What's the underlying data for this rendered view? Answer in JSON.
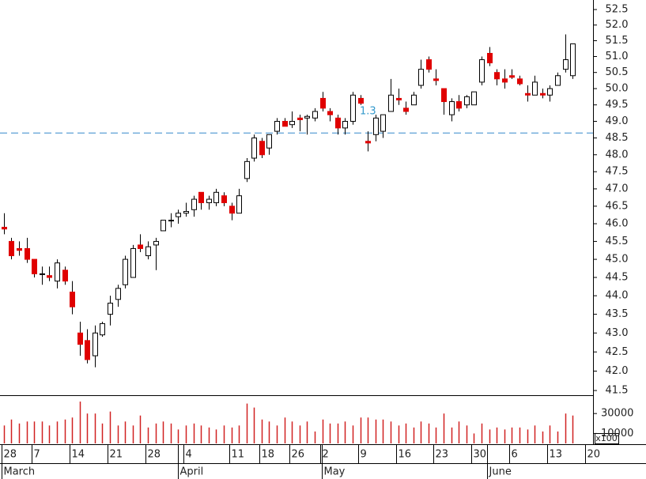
{
  "chart_data": {
    "type": "candlestick",
    "log_y": true,
    "up_color": "#ffffff",
    "down_color": "#e00000",
    "wick_color": "#000000",
    "volume_color": "#d02020",
    "annotation": "1.3",
    "annotation_color": "#3399cc",
    "hline": {
      "value": 48.65,
      "color": "#3388cc"
    },
    "open": [
      45.9,
      45.5,
      45.3,
      45.3,
      45.0,
      44.6,
      44.55,
      44.4,
      44.7,
      44.1,
      43.0,
      42.8,
      42.4,
      42.95,
      43.5,
      43.9,
      44.3,
      44.5,
      45.4,
      45.1,
      45.4,
      45.8,
      46.1,
      46.2,
      46.3,
      46.4,
      46.9,
      46.6,
      46.6,
      46.8,
      46.5,
      46.3,
      47.3,
      47.9,
      48.4,
      48.2,
      48.7,
      49.0,
      48.9,
      49.1,
      49.1,
      49.1,
      49.7,
      49.3,
      49.1,
      48.8,
      49.0,
      49.7,
      48.4,
      48.6,
      48.7,
      49.3,
      49.7,
      49.4,
      49.5,
      50.1,
      50.9,
      50.3,
      50.0,
      49.2,
      49.6,
      49.5,
      49.5,
      50.2,
      51.1,
      50.5,
      50.3,
      50.4,
      50.3,
      49.85,
      49.8,
      49.85,
      49.8,
      50.1,
      50.6,
      50.4
    ],
    "high": [
      46.3,
      45.6,
      45.5,
      45.6,
      45.0,
      44.8,
      44.8,
      45.0,
      44.8,
      44.4,
      43.3,
      43.1,
      43.2,
      43.3,
      44.0,
      44.3,
      45.1,
      45.4,
      45.7,
      45.5,
      45.6,
      46.1,
      46.3,
      46.4,
      46.6,
      46.8,
      46.9,
      46.8,
      47.0,
      46.9,
      46.6,
      47.0,
      47.9,
      48.6,
      48.5,
      48.6,
      49.1,
      49.1,
      49.3,
      49.2,
      49.2,
      49.4,
      49.9,
      49.4,
      49.2,
      49.1,
      49.9,
      49.8,
      48.7,
      49.2,
      49.2,
      50.3,
      50.0,
      49.6,
      49.9,
      50.9,
      51.0,
      50.6,
      50.0,
      49.7,
      49.8,
      49.8,
      49.9,
      51.0,
      51.3,
      50.6,
      50.6,
      50.6,
      50.4,
      50.1,
      50.4,
      50.0,
      50.1,
      50.5,
      51.7,
      51.4
    ],
    "low": [
      45.7,
      45.0,
      45.1,
      44.9,
      44.5,
      44.3,
      44.4,
      44.2,
      44.3,
      43.5,
      42.4,
      42.2,
      42.1,
      42.9,
      43.2,
      43.7,
      44.2,
      44.5,
      45.2,
      45.0,
      44.7,
      45.8,
      45.9,
      46.0,
      46.2,
      46.2,
      46.4,
      46.4,
      46.5,
      46.5,
      46.1,
      46.3,
      47.2,
      47.8,
      47.9,
      48.0,
      48.6,
      48.9,
      48.8,
      48.7,
      48.6,
      49.0,
      49.3,
      49.0,
      48.6,
      48.6,
      48.9,
      49.5,
      48.1,
      48.4,
      48.5,
      49.3,
      49.5,
      49.2,
      49.5,
      50.0,
      50.5,
      50.1,
      49.2,
      49.0,
      49.3,
      49.4,
      49.5,
      50.1,
      50.7,
      50.1,
      50.0,
      50.3,
      50.1,
      49.6,
      49.8,
      49.7,
      49.6,
      50.1,
      50.5,
      50.3
    ],
    "close": [
      45.85,
      45.1,
      45.25,
      45.0,
      44.6,
      44.6,
      44.5,
      44.9,
      44.4,
      43.7,
      42.7,
      42.3,
      43.0,
      43.25,
      43.8,
      44.2,
      45.0,
      45.3,
      45.3,
      45.35,
      45.5,
      46.1,
      46.1,
      46.3,
      46.35,
      46.7,
      46.6,
      46.7,
      46.9,
      46.6,
      46.3,
      46.8,
      47.8,
      48.5,
      48.0,
      48.6,
      49.0,
      48.85,
      49.0,
      49.05,
      49.15,
      49.3,
      49.4,
      49.2,
      48.8,
      49.0,
      49.8,
      49.55,
      48.35,
      49.1,
      49.2,
      49.8,
      49.65,
      49.3,
      49.8,
      50.6,
      50.6,
      50.25,
      49.6,
      49.6,
      49.4,
      49.75,
      49.9,
      50.9,
      50.8,
      50.3,
      50.2,
      50.35,
      50.15,
      49.8,
      50.2,
      49.8,
      50.0,
      50.4,
      50.9,
      51.4
    ],
    "volume": [
      18000,
      24000,
      20000,
      22000,
      22000,
      22000,
      18000,
      22000,
      24000,
      26000,
      42000,
      30000,
      30000,
      20000,
      32000,
      18000,
      22000,
      18000,
      28000,
      16000,
      20000,
      22000,
      20000,
      14000,
      18000,
      20000,
      18000,
      16000,
      14000,
      18000,
      16000,
      18000,
      40000,
      36000,
      24000,
      22000,
      18000,
      26000,
      22000,
      18000,
      22000,
      12000,
      24000,
      20000,
      20000,
      22000,
      18000,
      26000,
      26000,
      24000,
      24000,
      22000,
      18000,
      20000,
      16000,
      22000,
      20000,
      16000,
      30000,
      16000,
      22000,
      18000,
      10000,
      20000,
      14000,
      16000,
      14000,
      16000,
      16000,
      14000,
      18000,
      12000,
      18000,
      12000,
      30000,
      28000
    ],
    "ylim": [
      41.38,
      52.81
    ],
    "yticks": [
      {
        "value": 52.5,
        "label": "52.5"
      },
      {
        "value": 52,
        "label": "52.0"
      },
      51.5,
      {
        "value": 51,
        "label": "51.0"
      },
      50.5,
      {
        "value": 50,
        "label": "50.0"
      },
      49.5,
      {
        "value": 49,
        "label": "49.0"
      },
      48.5,
      {
        "value": 48,
        "label": "48.0"
      },
      47.5,
      {
        "value": 47,
        "label": "47.0"
      },
      46.5,
      {
        "value": 46,
        "label": "46.0"
      },
      45.5,
      {
        "value": 45,
        "label": "45.0"
      },
      44.5,
      {
        "value": 44,
        "label": "44.0"
      },
      43.5,
      {
        "value": 43,
        "label": "43.0"
      },
      42.5,
      {
        "value": 42,
        "label": "42.0"
      },
      41.5
    ],
    "vlim": [
      0,
      46800
    ],
    "vticks": [
      30000,
      10000
    ],
    "volume_unit": "x100",
    "xlim": [
      -0.5,
      77.7
    ],
    "xticks": [
      {
        "value": 0,
        "label": "28"
      },
      {
        "value": 4,
        "label": "7"
      },
      {
        "value": 9,
        "label": "14"
      },
      {
        "value": 14,
        "label": "21"
      },
      {
        "value": 19,
        "label": "28"
      },
      {
        "value": 24,
        "label": "4"
      },
      {
        "value": 30,
        "label": "11"
      },
      {
        "value": 34,
        "label": "18"
      },
      {
        "value": 38,
        "label": "26"
      },
      {
        "value": 42,
        "label": "2"
      },
      {
        "value": 47,
        "label": "9"
      },
      {
        "value": 52,
        "label": "16"
      },
      {
        "value": 57,
        "label": "23"
      },
      {
        "value": 62,
        "label": "30"
      },
      {
        "value": 67,
        "label": "6"
      },
      {
        "value": 72,
        "label": "13"
      },
      {
        "value": 77,
        "label": "20"
      }
    ],
    "month_ticks": [
      {
        "value": 0,
        "label": "March"
      },
      {
        "value": 23.3,
        "label": "April"
      },
      {
        "value": 42.3,
        "label": "May"
      },
      {
        "value": 64,
        "label": "June"
      }
    ]
  }
}
